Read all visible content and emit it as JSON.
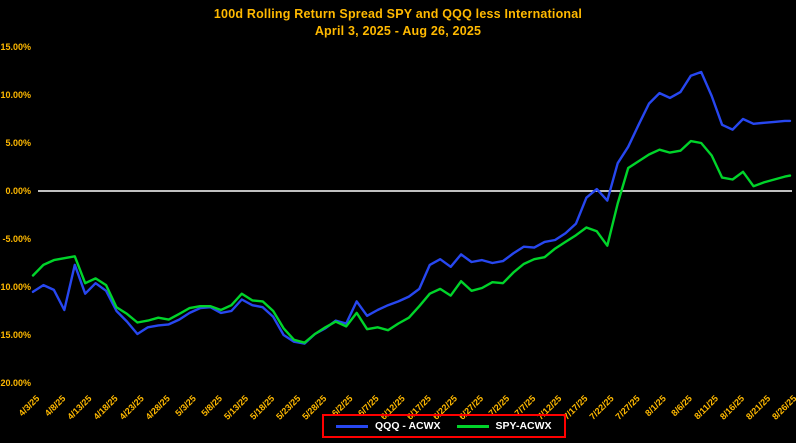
{
  "title": "100d Rolling Return Spread SPY and QQQ less International",
  "subtitle": "April 3, 2025 - Aug 26, 2025",
  "colors": {
    "background": "#000000",
    "title": "#FFB900",
    "axis_labels": "#FFB900",
    "zero_line": "#FFFFFF",
    "legend_border": "#FF0000",
    "legend_text": "#FFFFFF",
    "qqq_line": "#2747F0",
    "spy_line": "#00D42A"
  },
  "legend": {
    "items": [
      {
        "label": "QQQ - ACWX"
      },
      {
        "label": "SPY-ACWX"
      }
    ]
  },
  "chart_data": {
    "type": "line",
    "title": "100d Rolling Return Spread SPY and QQQ less International",
    "subtitle": "April 3, 2025 - Aug 26, 2025",
    "xlabel": "",
    "ylabel": "",
    "ylim": [
      -20,
      15
    ],
    "grid": false,
    "zero_line": true,
    "legend_position": "bottom-center",
    "y_ticks": [
      {
        "value": 15,
        "label": "15.00%"
      },
      {
        "value": 10,
        "label": "10.00%"
      },
      {
        "value": 5,
        "label": "5.00%"
      },
      {
        "value": 0,
        "label": "0.00%"
      },
      {
        "value": -5,
        "label": "-5.00%"
      },
      {
        "value": -10,
        "label": "-10.00%"
      },
      {
        "value": -15,
        "label": "-15.00%"
      },
      {
        "value": -20,
        "label": "-20.00%"
      }
    ],
    "x_tick_labels": [
      "4/3/25",
      "4/8/25",
      "4/13/25",
      "4/18/25",
      "4/23/25",
      "4/28/25",
      "5/3/25",
      "5/8/25",
      "5/13/25",
      "5/18/25",
      "5/23/25",
      "5/28/25",
      "6/2/25",
      "6/7/25",
      "6/12/25",
      "6/17/25",
      "6/22/25",
      "6/27/25",
      "7/2/25",
      "7/7/25",
      "7/12/25",
      "7/17/25",
      "7/22/25",
      "7/27/25",
      "8/1/25",
      "8/6/25",
      "8/11/25",
      "8/16/25",
      "8/21/25",
      "8/26/25"
    ],
    "x": [
      "4/3/25",
      "4/5/25",
      "4/7/25",
      "4/9/25",
      "4/11/25",
      "4/13/25",
      "4/15/25",
      "4/17/25",
      "4/19/25",
      "4/21/25",
      "4/23/25",
      "4/25/25",
      "4/27/25",
      "4/29/25",
      "5/1/25",
      "5/3/25",
      "5/5/25",
      "5/7/25",
      "5/9/25",
      "5/11/25",
      "5/13/25",
      "5/15/25",
      "5/17/25",
      "5/19/25",
      "5/21/25",
      "5/23/25",
      "5/25/25",
      "5/27/25",
      "5/29/25",
      "5/31/25",
      "6/2/25",
      "6/4/25",
      "6/6/25",
      "6/8/25",
      "6/10/25",
      "6/12/25",
      "6/14/25",
      "6/16/25",
      "6/18/25",
      "6/20/25",
      "6/22/25",
      "6/24/25",
      "6/26/25",
      "6/28/25",
      "6/30/25",
      "7/2/25",
      "7/4/25",
      "7/6/25",
      "7/8/25",
      "7/10/25",
      "7/12/25",
      "7/14/25",
      "7/16/25",
      "7/18/25",
      "7/20/25",
      "7/22/25",
      "7/24/25",
      "7/26/25",
      "7/28/25",
      "7/30/25",
      "8/1/25",
      "8/3/25",
      "8/5/25",
      "8/7/25",
      "8/9/25",
      "8/11/25",
      "8/13/25",
      "8/15/25",
      "8/17/25",
      "8/19/25",
      "8/21/25",
      "8/23/25",
      "8/25/25",
      "8/26/25"
    ],
    "series": [
      {
        "name": "QQQ - ACWX",
        "color": "#2747F0",
        "values": [
          -10.5,
          -9.8,
          -10.3,
          -12.4,
          -7.7,
          -10.7,
          -9.6,
          -10.4,
          -12.5,
          -13.6,
          -14.9,
          -14.2,
          -14.0,
          -13.9,
          -13.4,
          -12.7,
          -12.2,
          -12.1,
          -12.7,
          -12.5,
          -11.3,
          -11.9,
          -12.1,
          -13.1,
          -15.0,
          -15.7,
          -15.9,
          -14.9,
          -14.3,
          -13.5,
          -13.8,
          -11.5,
          -13.0,
          -12.4,
          -11.9,
          -11.5,
          -11.0,
          -10.2,
          -7.7,
          -7.1,
          -7.9,
          -6.6,
          -7.4,
          -7.2,
          -7.5,
          -7.3,
          -6.5,
          -5.8,
          -5.9,
          -5.3,
          -5.1,
          -4.4,
          -3.4,
          -0.7,
          0.2,
          -1.0,
          2.9,
          4.6,
          6.9,
          9.1,
          10.2,
          9.7,
          10.3,
          12.0,
          12.4,
          9.9,
          6.9,
          6.4,
          7.5,
          7.0,
          7.1,
          7.2,
          7.3,
          7.3
        ]
      },
      {
        "name": "SPY-ACWX",
        "color": "#00D42A",
        "values": [
          -8.8,
          -7.7,
          -7.2,
          -7.0,
          -6.8,
          -9.6,
          -9.1,
          -9.8,
          -12.1,
          -12.8,
          -13.7,
          -13.5,
          -13.2,
          -13.4,
          -12.8,
          -12.2,
          -12.0,
          -12.0,
          -12.4,
          -11.9,
          -10.7,
          -11.4,
          -11.5,
          -12.5,
          -14.3,
          -15.5,
          -15.8,
          -14.9,
          -14.2,
          -13.6,
          -14.1,
          -12.7,
          -14.4,
          -14.2,
          -14.5,
          -13.8,
          -13.2,
          -12.0,
          -10.7,
          -10.2,
          -10.9,
          -9.4,
          -10.4,
          -10.1,
          -9.5,
          -9.6,
          -8.5,
          -7.6,
          -7.1,
          -6.9,
          -6.0,
          -5.3,
          -4.6,
          -3.8,
          -4.2,
          -5.7,
          -1.3,
          2.4,
          3.1,
          3.8,
          4.3,
          4.0,
          4.2,
          5.2,
          5.0,
          3.7,
          1.4,
          1.2,
          2.0,
          0.5,
          0.9,
          1.2,
          1.5,
          1.6
        ]
      }
    ]
  }
}
